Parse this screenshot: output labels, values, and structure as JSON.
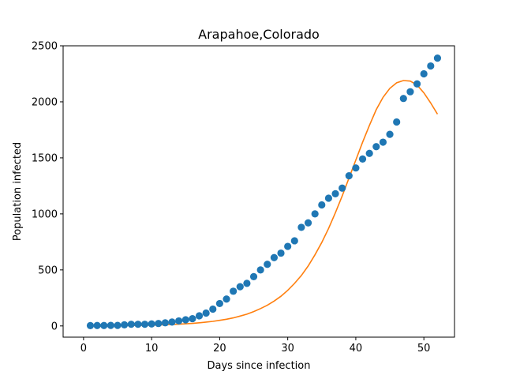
{
  "chart_data": {
    "type": "scatter+line",
    "title": "Arapahoe,Colorado",
    "xlabel": "Days since infection",
    "ylabel": "Population infected",
    "xlim": [
      -3,
      54.5
    ],
    "ylim": [
      -100,
      2500
    ],
    "xticks": [
      0,
      10,
      20,
      30,
      40,
      50
    ],
    "yticks": [
      0,
      500,
      1000,
      1500,
      2000,
      2500
    ],
    "grid": false,
    "legend": "none",
    "series": [
      {
        "kind": "scatter",
        "color": "#1f77b4",
        "x": [
          1,
          2,
          3,
          4,
          5,
          6,
          7,
          8,
          9,
          10,
          11,
          12,
          13,
          14,
          15,
          16,
          17,
          18,
          19,
          20,
          21,
          22,
          23,
          24,
          25,
          26,
          27,
          28,
          29,
          30,
          31,
          32,
          33,
          34,
          35,
          36,
          37,
          38,
          39,
          40,
          41,
          42,
          43,
          44,
          45,
          46,
          47,
          48,
          49,
          50,
          51,
          52
        ],
        "y": [
          3,
          4,
          4,
          5,
          5,
          10,
          15,
          15,
          15,
          18,
          22,
          28,
          35,
          45,
          55,
          65,
          90,
          115,
          150,
          200,
          240,
          310,
          350,
          380,
          440,
          500,
          550,
          610,
          650,
          710,
          760,
          880,
          920,
          1000,
          1080,
          1140,
          1180,
          1230,
          1340,
          1410,
          1490,
          1540,
          1600,
          1640,
          1710,
          1820,
          2030,
          2090,
          2160,
          2250,
          2320,
          2390
        ]
      },
      {
        "kind": "line",
        "color": "#ff7f0e",
        "x": [
          1,
          2,
          3,
          4,
          5,
          6,
          7,
          8,
          9,
          10,
          11,
          12,
          13,
          14,
          15,
          16,
          17,
          18,
          19,
          20,
          21,
          22,
          23,
          24,
          25,
          26,
          27,
          28,
          29,
          30,
          31,
          32,
          33,
          34,
          35,
          36,
          37,
          38,
          39,
          40,
          41,
          42,
          43,
          44,
          45,
          46,
          47,
          48,
          49,
          50,
          51,
          52
        ],
        "y": [
          0,
          1,
          1,
          2,
          2,
          3,
          4,
          5,
          6,
          7,
          9,
          11,
          13,
          16,
          19,
          23,
          28,
          34,
          41,
          50,
          60,
          72,
          88,
          105,
          128,
          155,
          185,
          222,
          265,
          318,
          380,
          450,
          535,
          635,
          745,
          870,
          1010,
          1160,
          1320,
          1480,
          1640,
          1790,
          1930,
          2040,
          2120,
          2170,
          2190,
          2185,
          2150,
          2080,
          1990,
          1890
        ]
      }
    ]
  }
}
